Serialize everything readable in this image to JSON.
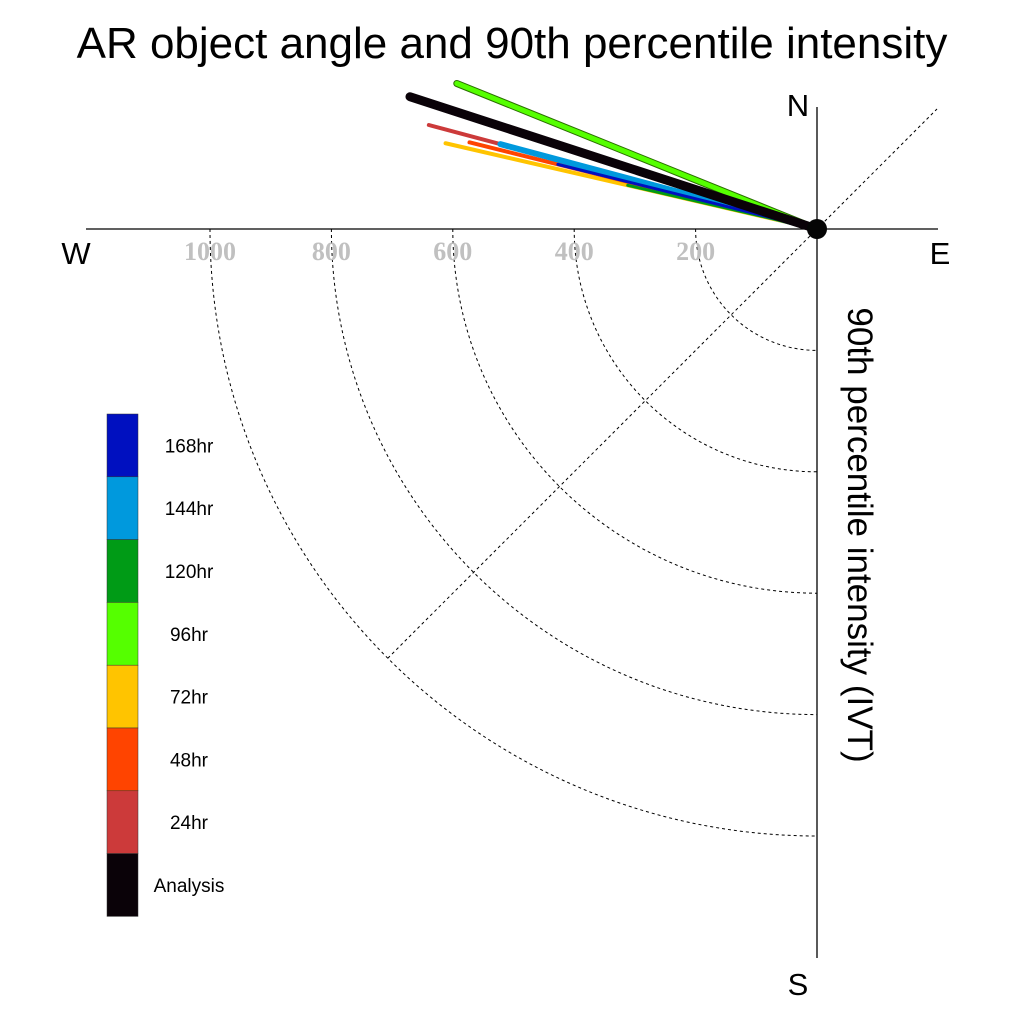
{
  "chart_data": {
    "type": "polar-vector",
    "title": "AR object angle and 90th percentile intensity",
    "ylabel": "90th percentile intensity (IVT)",
    "directions": {
      "north": "N",
      "south": "S",
      "east": "E",
      "west": "W"
    },
    "quadrant": "south-west",
    "radial_ticks": [
      200,
      400,
      600,
      800,
      1000
    ],
    "radial_tick_labels": [
      "200",
      "400",
      "600",
      "800",
      "1000"
    ],
    "grid": true,
    "legend_placement": "left",
    "series": [
      {
        "name": "Analysis",
        "color": "#0a0208",
        "intensity": 705,
        "angle_deg": 162
      },
      {
        "name": "24hr",
        "color": "#cc3a3a",
        "intensity": 662,
        "angle_deg": 165
      },
      {
        "name": "48hr",
        "color": "#ff4400",
        "intensity": 590,
        "angle_deg": 166
      },
      {
        "name": "72hr",
        "color": "#ffc400",
        "intensity": 628,
        "angle_deg": 167
      },
      {
        "name": "96hr",
        "color": "#55ff00",
        "intensity": 640,
        "angle_deg": 158
      },
      {
        "name": "120hr",
        "color": "#009b16",
        "intensity": 320,
        "angle_deg": 167
      },
      {
        "name": "144hr",
        "color": "#0099dd",
        "intensity": 540,
        "angle_deg": 165
      },
      {
        "name": "168hr",
        "color": "#0010c0",
        "intensity": 440,
        "angle_deg": 166
      }
    ]
  }
}
